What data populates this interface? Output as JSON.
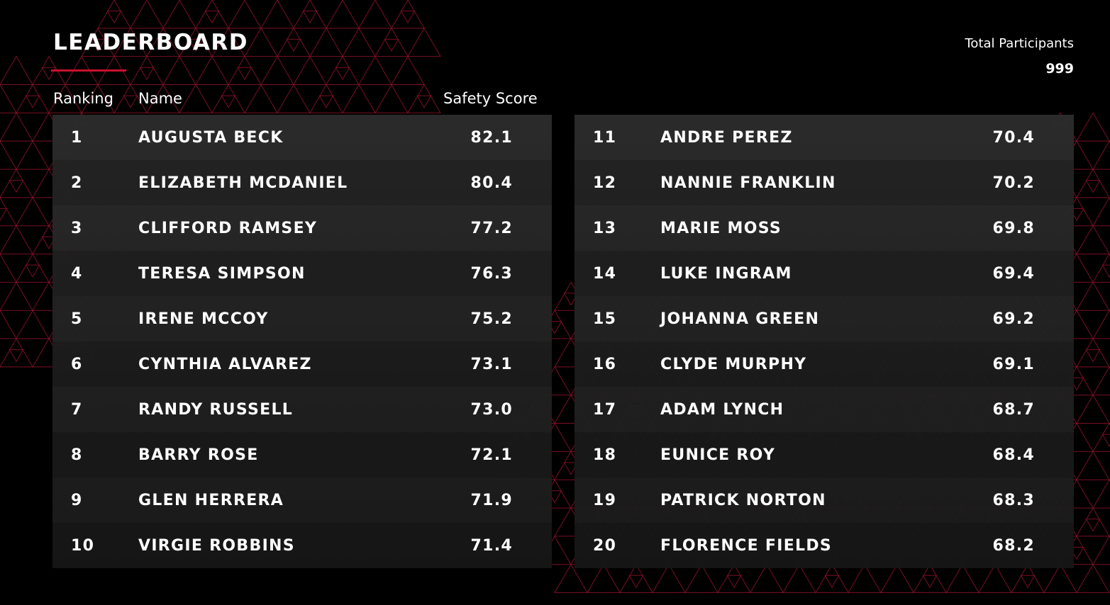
{
  "header": {
    "title": "LEADERBOARD",
    "participants_label": "Total Participants",
    "participants_value": "999"
  },
  "columns": {
    "rank": "Ranking",
    "name": "Name",
    "score": "Safety Score"
  },
  "rows_left": [
    {
      "rank": "1",
      "name": "AUGUSTA BECK",
      "score": "82.1"
    },
    {
      "rank": "2",
      "name": "ELIZABETH MCDANIEL",
      "score": "80.4"
    },
    {
      "rank": "3",
      "name": "CLIFFORD RAMSEY",
      "score": "77.2"
    },
    {
      "rank": "4",
      "name": "TERESA SIMPSON",
      "score": "76.3"
    },
    {
      "rank": "5",
      "name": "IRENE MCCOY",
      "score": "75.2"
    },
    {
      "rank": "6",
      "name": "CYNTHIA ALVAREZ",
      "score": "73.1"
    },
    {
      "rank": "7",
      "name": "RANDY RUSSELL",
      "score": "73.0"
    },
    {
      "rank": "8",
      "name": "BARRY ROSE",
      "score": "72.1"
    },
    {
      "rank": "9",
      "name": "GLEN HERRERA",
      "score": "71.9"
    },
    {
      "rank": "10",
      "name": "VIRGIE ROBBINS",
      "score": "71.4"
    }
  ],
  "rows_right": [
    {
      "rank": "11",
      "name": "ANDRE PEREZ",
      "score": "70.4"
    },
    {
      "rank": "12",
      "name": "NANNIE FRANKLIN",
      "score": "70.2"
    },
    {
      "rank": "13",
      "name": "MARIE MOSS",
      "score": "69.8"
    },
    {
      "rank": "14",
      "name": "LUKE INGRAM",
      "score": "69.4"
    },
    {
      "rank": "15",
      "name": "JOHANNA GREEN",
      "score": "69.2"
    },
    {
      "rank": "16",
      "name": "CLYDE MURPHY",
      "score": "69.1"
    },
    {
      "rank": "17",
      "name": "ADAM LYNCH",
      "score": "68.7"
    },
    {
      "rank": "18",
      "name": "EUNICE ROY",
      "score": "68.4"
    },
    {
      "rank": "19",
      "name": "PATRICK NORTON",
      "score": "68.3"
    },
    {
      "rank": "20",
      "name": "FLORENCE FIELDS",
      "score": "68.2"
    }
  ],
  "colors": {
    "background": "#000000",
    "accent": "#c8102e",
    "pattern_stroke": "#7a1024",
    "text": "#ffffff"
  }
}
